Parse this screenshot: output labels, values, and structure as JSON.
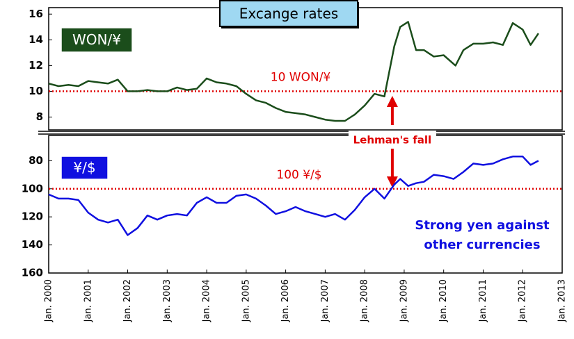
{
  "chart_data": [
    {
      "type": "line",
      "title": "Excange rates",
      "series": [
        {
          "name": "WON/¥",
          "color": "#1b4d1b",
          "x": [
            2000.0,
            2000.25,
            2000.5,
            2000.75,
            2001.0,
            2001.25,
            2001.5,
            2001.75,
            2002.0,
            2002.25,
            2002.5,
            2002.75,
            2003.0,
            2003.25,
            2003.5,
            2003.75,
            2004.0,
            2004.25,
            2004.5,
            2004.75,
            2005.0,
            2005.25,
            2005.5,
            2005.75,
            2006.0,
            2006.25,
            2006.5,
            2006.75,
            2007.0,
            2007.25,
            2007.5,
            2007.75,
            2008.0,
            2008.25,
            2008.5,
            2008.75,
            2008.9,
            2009.1,
            2009.3,
            2009.5,
            2009.75,
            2010.0,
            2010.3,
            2010.5,
            2010.75,
            2011.0,
            2011.25,
            2011.5,
            2011.75,
            2012.0,
            2012.2,
            2012.4
          ],
          "values": [
            10.6,
            10.4,
            10.5,
            10.4,
            10.8,
            10.7,
            10.6,
            10.9,
            10.0,
            10.0,
            10.1,
            10.0,
            10.0,
            10.3,
            10.1,
            10.2,
            11.0,
            10.7,
            10.6,
            10.4,
            9.8,
            9.3,
            9.1,
            8.7,
            8.4,
            8.3,
            8.2,
            8.0,
            7.8,
            7.7,
            7.7,
            8.2,
            8.9,
            9.8,
            9.6,
            13.5,
            15.0,
            15.4,
            13.2,
            13.2,
            12.7,
            12.8,
            12.0,
            13.2,
            13.7,
            13.7,
            13.8,
            13.6,
            15.3,
            14.8,
            13.6,
            14.5
          ]
        }
      ],
      "reference": {
        "text": "10 WON/¥",
        "value": 10,
        "color": "#e00000"
      },
      "annotation": {
        "text": "Lehman's fall",
        "x": 2008.7,
        "color": "#e00000"
      },
      "xlim": [
        2000,
        2013
      ],
      "ylim": [
        7,
        16.5
      ],
      "yticks": [
        8,
        10,
        12,
        14,
        16
      ]
    },
    {
      "type": "line",
      "series": [
        {
          "name": "¥/$",
          "color": "#1010e0",
          "x": [
            2000.0,
            2000.25,
            2000.5,
            2000.75,
            2001.0,
            2001.25,
            2001.5,
            2001.75,
            2002.0,
            2002.25,
            2002.5,
            2002.75,
            2003.0,
            2003.25,
            2003.5,
            2003.75,
            2004.0,
            2004.25,
            2004.5,
            2004.75,
            2005.0,
            2005.25,
            2005.5,
            2005.75,
            2006.0,
            2006.25,
            2006.5,
            2006.75,
            2007.0,
            2007.25,
            2007.5,
            2007.75,
            2008.0,
            2008.25,
            2008.5,
            2008.75,
            2008.9,
            2009.1,
            2009.3,
            2009.5,
            2009.75,
            2010.0,
            2010.25,
            2010.5,
            2010.75,
            2011.0,
            2011.25,
            2011.5,
            2011.75,
            2012.0,
            2012.2,
            2012.4
          ],
          "values": [
            104,
            107,
            107,
            108,
            117,
            122,
            124,
            122,
            133,
            128,
            119,
            122,
            119,
            118,
            119,
            110,
            106,
            110,
            110,
            105,
            104,
            107,
            112,
            118,
            116,
            113,
            116,
            118,
            120,
            118,
            122,
            115,
            106,
            100,
            107,
            97,
            93,
            98,
            96,
            95,
            90,
            91,
            93,
            88,
            82,
            83,
            82,
            79,
            77,
            77,
            83,
            80
          ]
        }
      ],
      "reference": {
        "text": "100 ¥/$",
        "value": 100,
        "color": "#e00000"
      },
      "note": [
        "Strong yen against",
        "other currencies"
      ],
      "xlim": [
        2000,
        2013
      ],
      "xticks": [
        {
          "value": 2000,
          "label": "Jan. 2000"
        },
        {
          "value": 2001,
          "label": "Jan. 2001"
        },
        {
          "value": 2002,
          "label": "Jan. 2002"
        },
        {
          "value": 2003,
          "label": "Jan. 2003"
        },
        {
          "value": 2004,
          "label": "Jan. 2004"
        },
        {
          "value": 2005,
          "label": "Jan. 2005"
        },
        {
          "value": 2006,
          "label": "Jan. 2006"
        },
        {
          "value": 2007,
          "label": "Jan. 2007"
        },
        {
          "value": 2008,
          "label": "Jan. 2008"
        },
        {
          "value": 2009,
          "label": "Jan. 2009"
        },
        {
          "value": 2010,
          "label": "Jan. 2010"
        },
        {
          "value": 2011,
          "label": "Jan. 2011"
        },
        {
          "value": 2012,
          "label": "Jan. 2012"
        },
        {
          "value": 2013,
          "label": "Jan. 2013"
        }
      ],
      "ylim": [
        160,
        62
      ],
      "yticks": [
        80,
        100,
        120,
        140,
        160
      ]
    }
  ]
}
